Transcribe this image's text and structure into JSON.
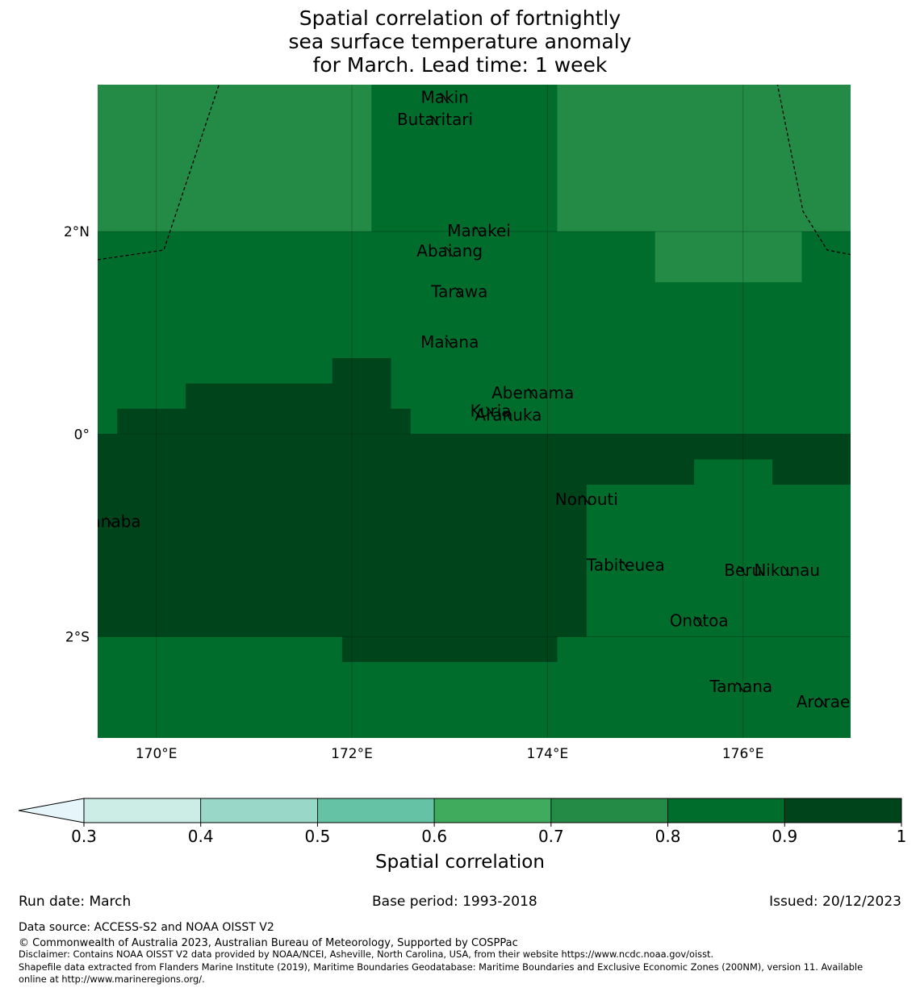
{
  "title": {
    "line1": "Spatial correlation of fortnightly",
    "line2": "sea surface temperature anomaly",
    "line3": "for March. Lead time: 1 week"
  },
  "map": {
    "extent": {
      "lon": [
        169.4,
        177.1
      ],
      "lat": [
        -3.0,
        3.45
      ]
    },
    "axes": {
      "x_ticks": [
        {
          "value": 170,
          "label": "170°E"
        },
        {
          "value": 172,
          "label": "172°E"
        },
        {
          "value": 174,
          "label": "174°E"
        },
        {
          "value": 176,
          "label": "176°E"
        }
      ],
      "y_ticks": [
        {
          "value": 2,
          "label": "2°N"
        },
        {
          "value": 0,
          "label": "0°"
        },
        {
          "value": -2,
          "label": "2°S"
        }
      ]
    },
    "bins": [
      {
        "min": 0.6,
        "max": 0.7,
        "color": "#41ab5d"
      },
      {
        "min": 0.7,
        "max": 0.8,
        "color": "#238b45"
      },
      {
        "min": 0.8,
        "max": 0.9,
        "color": "#006d2c"
      },
      {
        "min": 0.9,
        "max": 1.0,
        "color": "#00441b"
      }
    ],
    "correlation_regions": [
      {
        "value": 0.75,
        "lon": [
          169.4,
          172.2
        ],
        "lat": [
          2.0,
          3.45
        ]
      },
      {
        "value": 0.75,
        "lon": [
          174.1,
          177.1
        ],
        "lat": [
          2.0,
          3.45
        ]
      },
      {
        "value": 0.75,
        "lon": [
          175.1,
          176.6
        ],
        "lat": [
          1.5,
          2.0
        ]
      },
      {
        "value": 0.95,
        "lon": [
          169.4,
          177.1
        ],
        "lat": [
          -2.0,
          0.0
        ]
      },
      {
        "value": 0.95,
        "lon": [
          169.6,
          172.6
        ],
        "lat": [
          0.0,
          0.25
        ]
      },
      {
        "value": 0.95,
        "lon": [
          170.3,
          172.4
        ],
        "lat": [
          0.25,
          0.5
        ]
      },
      {
        "value": 0.95,
        "lon": [
          171.8,
          172.4
        ],
        "lat": [
          0.5,
          0.75
        ]
      },
      {
        "value": 0.95,
        "lon": [
          171.9,
          174.1
        ],
        "lat": [
          -2.25,
          -2.0
        ]
      },
      {
        "value": 0.85,
        "lon": [
          174.4,
          177.1
        ],
        "lat": [
          -2.0,
          -0.5
        ]
      },
      {
        "value": 0.85,
        "lon": [
          175.5,
          176.3
        ],
        "lat": [
          -0.5,
          -0.25
        ]
      }
    ],
    "islands": [
      {
        "name": "Makin",
        "lon": 172.95,
        "lat": 3.32
      },
      {
        "name": "Butaritari",
        "lon": 172.85,
        "lat": 3.1
      },
      {
        "name": "Marakei",
        "lon": 173.3,
        "lat": 2.0
      },
      {
        "name": "Abaiang",
        "lon": 173.0,
        "lat": 1.8
      },
      {
        "name": "Tarawa",
        "lon": 173.1,
        "lat": 1.4
      },
      {
        "name": "Maiana",
        "lon": 173.0,
        "lat": 0.9
      },
      {
        "name": "Abemama",
        "lon": 173.85,
        "lat": 0.4
      },
      {
        "name": "Kuria",
        "lon": 173.42,
        "lat": 0.22
      },
      {
        "name": "Aranuka",
        "lon": 173.6,
        "lat": 0.18
      },
      {
        "name": "Nonouti",
        "lon": 174.4,
        "lat": -0.65
      },
      {
        "name": "Banaba",
        "lon": 169.53,
        "lat": -0.87
      },
      {
        "name": "Tabiteuea",
        "lon": 174.8,
        "lat": -1.3
      },
      {
        "name": "Beru",
        "lon": 176.0,
        "lat": -1.35
      },
      {
        "name": "Nikunau",
        "lon": 176.45,
        "lat": -1.35
      },
      {
        "name": "Onotoa",
        "lon": 175.55,
        "lat": -1.85
      },
      {
        "name": "Tamana",
        "lon": 175.98,
        "lat": -2.5
      },
      {
        "name": "Arorae",
        "lon": 176.82,
        "lat": -2.65
      }
    ]
  },
  "colorbar": {
    "label": "Spatial correlation",
    "ticks": [
      "0.3",
      "0.4",
      "0.5",
      "0.6",
      "0.7",
      "0.8",
      "0.9",
      "1"
    ],
    "colors": [
      "#ccece6",
      "#99d8c9",
      "#66c2a4",
      "#41ab5d",
      "#238b45",
      "#006d2c",
      "#00441b"
    ],
    "extend_color": "#e5f5f9"
  },
  "footer": {
    "run_date": "Run date: March",
    "base_period": "Base period: 1993-2018",
    "issued": "Issued: 20/12/2023",
    "data_source": "Data source: ACCESS-S2 and NOAA OISST V2",
    "copyright": "© Commonwealth of Australia 2023, Australian Bureau of Meteorology, Supported by COSPPac",
    "disclaimer": "Disclaimer: Contains NOAA OISST V2 data provided by NOAA/NCEI, Asheville, North Carolina, USA, from their website https://www.ncdc.noaa.gov/oisst.",
    "shapefile_line1": "Shapefile data extracted from Flanders Marine Institute (2019), Maritime Boundaries Geodatabase: Maritime Boundaries and Exclusive Economic Zones (200NM), version 11. Available",
    "shapefile_line2": "online at http://www.marineregions.org/."
  }
}
